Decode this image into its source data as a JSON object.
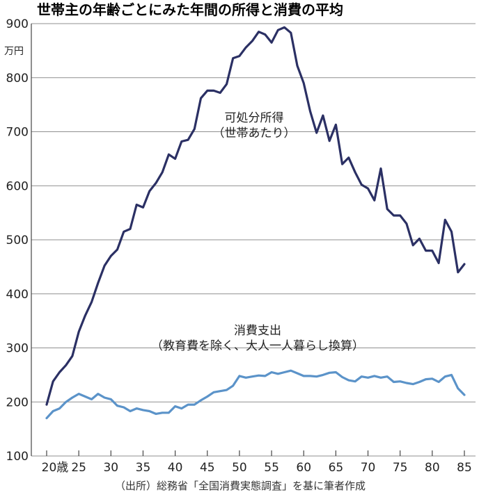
{
  "chart_data": {
    "type": "line",
    "title": "世帯主の年齢ごとにみた年間の所得と消費の平均",
    "yunit": "万円",
    "ylim": [
      100,
      900
    ],
    "yticks": [
      100,
      200,
      300,
      400,
      500,
      600,
      700,
      800,
      900
    ],
    "xlim": [
      20,
      85
    ],
    "xticks": [
      20,
      25,
      30,
      35,
      40,
      45,
      50,
      55,
      60,
      65,
      70,
      75,
      80,
      85
    ],
    "xtick_labels": [
      "20歳",
      "25",
      "30",
      "35",
      "40",
      "45",
      "50",
      "55",
      "60",
      "65",
      "70",
      "75",
      "80",
      "85"
    ],
    "grid": "horizontal",
    "source": "（出所）総務省「全国消費実態調査」を基に筆者作成",
    "series": [
      {
        "name_lines": [
          "可処分所得",
          "（世帯あたり）"
        ],
        "color": "#2b3064",
        "x": [
          20,
          21,
          22,
          23,
          24,
          25,
          26,
          27,
          28,
          29,
          30,
          31,
          32,
          33,
          34,
          35,
          36,
          37,
          38,
          39,
          40,
          41,
          42,
          43,
          44,
          45,
          46,
          47,
          48,
          49,
          50,
          51,
          52,
          53,
          54,
          55,
          56,
          57,
          58,
          59,
          60,
          61,
          62,
          63,
          64,
          65,
          66,
          67,
          68,
          69,
          70,
          71,
          72,
          73,
          74,
          75,
          76,
          77,
          78,
          79,
          80,
          81,
          82,
          83,
          84,
          85
        ],
        "values": [
          195,
          238,
          255,
          268,
          285,
          330,
          360,
          385,
          420,
          452,
          470,
          482,
          515,
          520,
          565,
          560,
          590,
          605,
          625,
          658,
          650,
          682,
          685,
          705,
          762,
          776,
          776,
          772,
          788,
          836,
          840,
          856,
          868,
          885,
          880,
          865,
          888,
          893,
          883,
          822,
          790,
          738,
          698,
          730,
          683,
          713,
          640,
          652,
          625,
          602,
          595,
          573,
          632,
          557,
          545,
          545,
          530,
          490,
          502,
          480,
          480,
          457,
          537,
          515,
          440,
          455
        ]
      },
      {
        "name_lines": [
          "消費支出",
          "（教育費を除く、大人一人暮らし換算）"
        ],
        "color": "#5b93c9",
        "x": [
          20,
          21,
          22,
          23,
          24,
          25,
          26,
          27,
          28,
          29,
          30,
          31,
          32,
          33,
          34,
          35,
          36,
          37,
          38,
          39,
          40,
          41,
          42,
          43,
          44,
          45,
          46,
          47,
          48,
          49,
          50,
          51,
          52,
          53,
          54,
          55,
          56,
          57,
          58,
          59,
          60,
          61,
          62,
          63,
          64,
          65,
          66,
          67,
          68,
          69,
          70,
          71,
          72,
          73,
          74,
          75,
          76,
          77,
          78,
          79,
          80,
          81,
          82,
          83,
          84,
          85
        ],
        "values": [
          170,
          183,
          188,
          200,
          208,
          215,
          210,
          205,
          215,
          208,
          205,
          193,
          190,
          183,
          188,
          185,
          183,
          178,
          180,
          180,
          192,
          188,
          195,
          195,
          203,
          210,
          218,
          220,
          222,
          230,
          248,
          245,
          247,
          249,
          248,
          255,
          252,
          255,
          258,
          253,
          248,
          248,
          247,
          250,
          254,
          255,
          246,
          240,
          238,
          247,
          245,
          248,
          245,
          247,
          237,
          238,
          235,
          233,
          237,
          242,
          243,
          237,
          247,
          250,
          225,
          213
        ]
      }
    ]
  }
}
